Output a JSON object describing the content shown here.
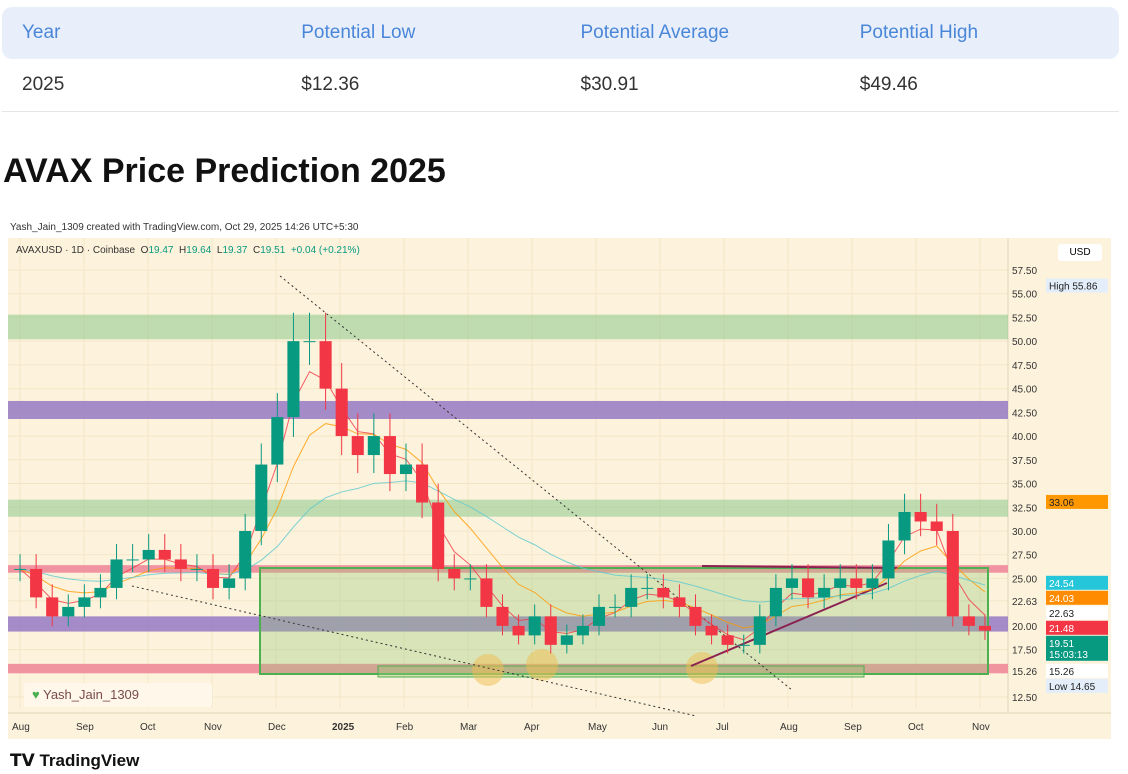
{
  "table": {
    "headers": [
      "Year",
      "Potential Low",
      "Potential Average",
      "Potential High"
    ],
    "rows": [
      [
        "2025",
        "$12.36",
        "$30.91",
        "$49.46"
      ]
    ]
  },
  "heading": "AVAX Price Prediction 2025",
  "credit": "Yash_Jain_1309 created with TradingView.com, Oct 29, 2025 14:26 UTC+5:30",
  "legend": {
    "symbol": "AVAXUSD · 1D · Coinbase",
    "o": "19.47",
    "h": "19.64",
    "l": "19.37",
    "c": "19.51",
    "chg": "+0.04 (+0.21%)"
  },
  "currency": "USD",
  "author_tag": "Yash_Jain_1309",
  "brand": "TradingView",
  "chart_data": {
    "type": "candlestick",
    "symbol": "AVAXUSD",
    "interval": "1D",
    "exchange": "Coinbase",
    "x_labels": [
      "Aug",
      "Sep",
      "Oct",
      "Nov",
      "Dec",
      "2025",
      "Feb",
      "Mar",
      "Apr",
      "May",
      "Jun",
      "Jul",
      "Aug",
      "Sep",
      "Oct",
      "Nov"
    ],
    "y_ticks": [
      57.5,
      55,
      52.5,
      50,
      47.5,
      45,
      42.5,
      40,
      37.5,
      35,
      32.5,
      30,
      27.5,
      25,
      22.63,
      20,
      17.5,
      15.26,
      12.5
    ],
    "ylim": [
      11,
      60
    ],
    "weekly_closes": [
      26,
      23,
      21,
      22,
      23,
      24,
      27,
      27,
      28,
      27,
      26,
      26,
      24,
      25,
      30,
      37,
      42,
      50,
      50,
      45,
      40,
      38,
      40,
      36,
      37,
      33,
      26,
      25,
      25,
      22,
      20,
      19,
      21,
      18,
      19,
      20,
      22,
      22,
      24,
      24,
      23,
      22,
      20,
      19,
      18,
      18,
      21,
      24,
      25,
      23,
      24,
      25,
      24,
      25,
      29,
      32,
      31,
      30,
      21,
      20,
      19.5
    ],
    "zones": [
      {
        "type": "green",
        "low": 50.2,
        "high": 52.8
      },
      {
        "type": "purple",
        "low": 41.8,
        "high": 43.7
      },
      {
        "type": "green",
        "low": 31.5,
        "high": 33.3
      },
      {
        "type": "pink",
        "low": 25.6,
        "high": 26.4
      },
      {
        "type": "purple",
        "low": 19.4,
        "high": 21
      },
      {
        "type": "pink",
        "low": 15,
        "high": 16
      }
    ],
    "price_labels": [
      {
        "label": "High",
        "value": "55.86",
        "color": "#e3eefa"
      },
      {
        "label": "",
        "value": "33.06",
        "color": "#ff9800"
      },
      {
        "label": "",
        "value": "24.54",
        "color": "#26c6da"
      },
      {
        "label": "",
        "value": "24.03",
        "color": "#ff8c00"
      },
      {
        "label": "",
        "value": "22.63",
        "color": "#ffffff"
      },
      {
        "label": "",
        "value": "21.48",
        "color": "#f23645"
      },
      {
        "label": "",
        "value": "19.51",
        "color": "#089981",
        "sub": "15:03:13"
      },
      {
        "label": "",
        "value": "15.26",
        "color": "#ffffff"
      },
      {
        "label": "Low",
        "value": "14.65",
        "color": "#e3eefa"
      }
    ]
  }
}
